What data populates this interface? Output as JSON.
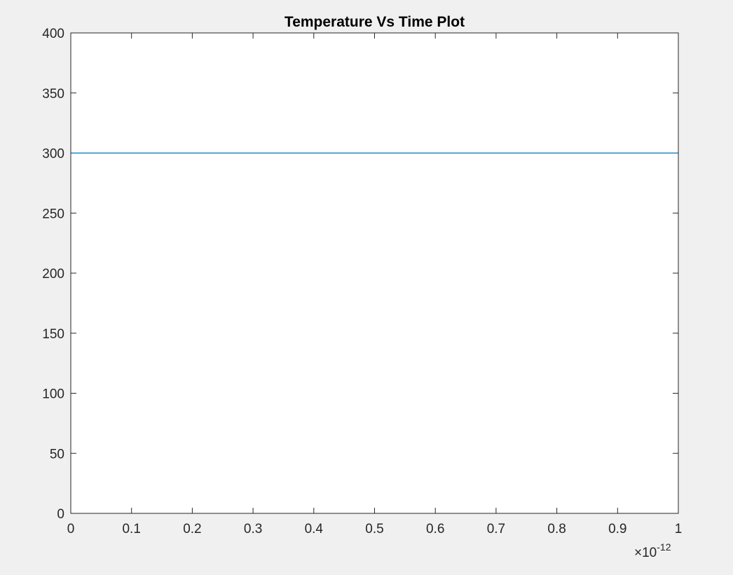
{
  "figure": {
    "background": "#f0f0f0"
  },
  "chart_data": {
    "type": "line",
    "title": "Temperature Vs Time Plot",
    "xlabel": "",
    "ylabel": "",
    "xlim": [
      0,
      1e-12
    ],
    "ylim": [
      0,
      400
    ],
    "x_ticks": [
      0,
      0.1,
      0.2,
      0.3,
      0.4,
      0.5,
      0.6,
      0.7,
      0.8,
      0.9,
      1
    ],
    "x_tick_labels": [
      "0",
      "0.1",
      "0.2",
      "0.3",
      "0.4",
      "0.5",
      "0.6",
      "0.7",
      "0.8",
      "0.9",
      "1"
    ],
    "x_exponent_multiplier": "×",
    "x_exponent_base": "10",
    "x_exponent_power": "-12",
    "y_ticks": [
      0,
      50,
      100,
      150,
      200,
      250,
      300,
      350,
      400
    ],
    "y_tick_labels": [
      "0",
      "50",
      "100",
      "150",
      "200",
      "250",
      "300",
      "350",
      "400"
    ],
    "grid": false,
    "series": [
      {
        "color": "#0072bd",
        "x": [
          0,
          1e-12
        ],
        "y": [
          300,
          300
        ]
      }
    ],
    "axes_color": "#262626",
    "plot_background": "#ffffff"
  }
}
